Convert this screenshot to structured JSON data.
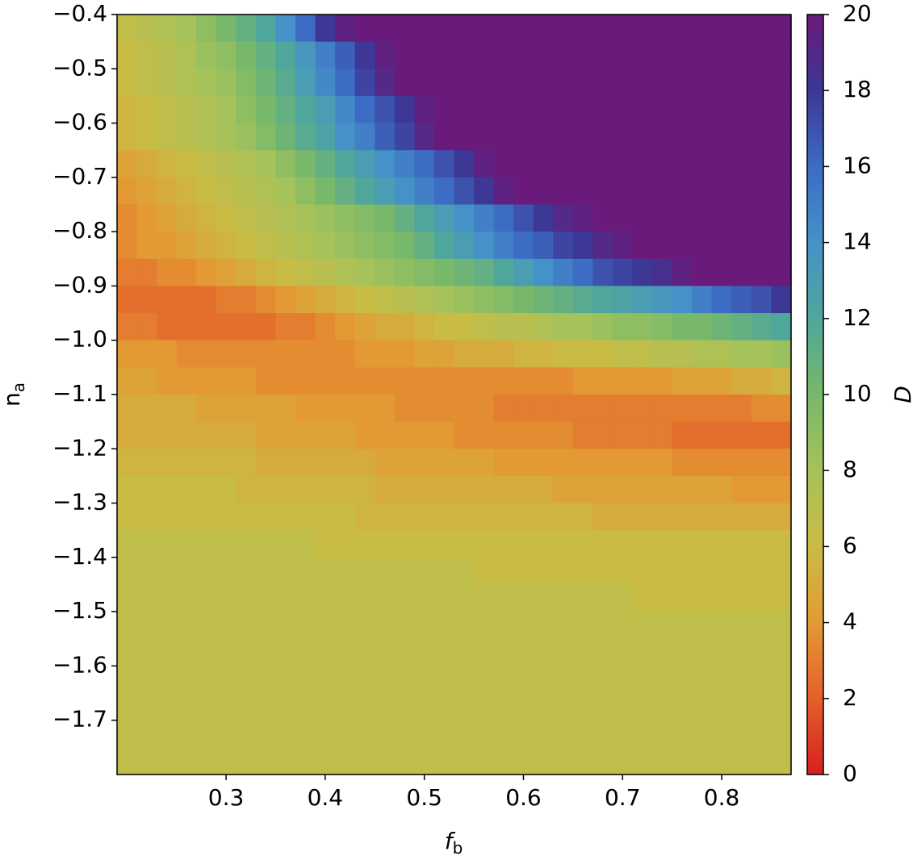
{
  "chart_data": {
    "type": "heatmap",
    "xlabel": "f",
    "xlabel_subscript": "b",
    "ylabel": "n",
    "ylabel_subscript": "a",
    "colorbar_label": "D",
    "xlim": [
      0.19,
      0.87
    ],
    "ylim": [
      -1.8,
      -0.4
    ],
    "xticks": [
      0.3,
      0.4,
      0.5,
      0.6,
      0.7,
      0.8
    ],
    "yticks": [
      {
        "value": -0.4,
        "label": "−0.4"
      },
      {
        "value": -0.5,
        "label": "−0.5"
      },
      {
        "value": -0.6,
        "label": "−0.6"
      },
      {
        "value": -0.7,
        "label": "−0.7"
      },
      {
        "value": -0.8,
        "label": "−0.8"
      },
      {
        "value": -0.9,
        "label": "−0.9"
      },
      {
        "value": -1.0,
        "label": "−1.0"
      },
      {
        "value": -1.1,
        "label": "−1.1"
      },
      {
        "value": -1.2,
        "label": "−1.2"
      },
      {
        "value": -1.3,
        "label": "−1.3"
      },
      {
        "value": -1.4,
        "label": "−1.4"
      },
      {
        "value": -1.5,
        "label": "−1.5"
      },
      {
        "value": -1.6,
        "label": "−1.6"
      },
      {
        "value": -1.7,
        "label": "−1.7"
      }
    ],
    "clim": [
      0,
      20
    ],
    "cticks": [
      0,
      2,
      4,
      6,
      8,
      10,
      12,
      14,
      16,
      18,
      20
    ],
    "colormap": [
      "#d62020",
      "#e4602a",
      "#e39a35",
      "#c9bc45",
      "#a6c25a",
      "#78b86a",
      "#4fa79b",
      "#4592c8",
      "#3c6cc4",
      "#3d3795",
      "#6a1a7a"
    ],
    "x": [
      0.2,
      0.22,
      0.24,
      0.26,
      0.28,
      0.3,
      0.32,
      0.34,
      0.36,
      0.38,
      0.4,
      0.42,
      0.44,
      0.46,
      0.48,
      0.5,
      0.52,
      0.54,
      0.56,
      0.58,
      0.6,
      0.62,
      0.64,
      0.66,
      0.68,
      0.7,
      0.72,
      0.74,
      0.76,
      0.78,
      0.8,
      0.82,
      0.84,
      0.86
    ],
    "y": [
      -0.425,
      -0.475,
      -0.525,
      -0.575,
      -0.625,
      -0.675,
      -0.725,
      -0.775,
      -0.825,
      -0.875,
      -0.925,
      -0.975,
      -1.025,
      -1.075,
      -1.125,
      -1.175,
      -1.225,
      -1.275,
      -1.325,
      -1.375,
      -1.425,
      -1.475,
      -1.525,
      -1.575,
      -1.625,
      -1.675,
      -1.725,
      -1.775
    ],
    "z": [
      [
        6.5,
        7,
        7.5,
        8,
        9,
        10,
        11,
        12,
        14,
        16,
        18,
        19.5,
        20,
        20,
        20,
        20,
        20,
        20,
        20,
        20,
        20,
        20,
        20,
        20,
        20,
        20,
        20,
        20,
        20,
        20,
        20,
        20,
        20,
        20
      ],
      [
        6,
        6.5,
        7,
        7.5,
        8.5,
        9,
        10,
        11,
        12,
        13.5,
        15,
        16.5,
        18,
        19.5,
        20,
        20,
        20,
        20,
        20,
        20,
        20,
        20,
        20,
        20,
        20,
        20,
        20,
        20,
        20,
        20,
        20,
        20,
        20,
        20
      ],
      [
        6,
        6.5,
        7,
        7.5,
        8,
        8.5,
        9.5,
        10.5,
        11.5,
        13,
        14.5,
        16,
        17.5,
        19,
        20,
        20,
        20,
        20,
        20,
        20,
        20,
        20,
        20,
        20,
        20,
        20,
        20,
        20,
        20,
        20,
        20,
        20,
        20,
        20
      ],
      [
        5.5,
        6,
        6.5,
        7,
        7.5,
        8,
        9,
        10,
        11,
        12,
        13,
        14.5,
        16,
        17,
        18,
        19.5,
        20,
        20,
        20,
        20,
        20,
        20,
        20,
        20,
        20,
        20,
        20,
        20,
        20,
        20,
        20,
        20,
        20,
        20
      ],
      [
        5.5,
        6,
        6.5,
        7,
        7.5,
        8,
        8.5,
        9.5,
        10.5,
        11.5,
        12.5,
        14,
        15,
        16.5,
        17.5,
        19,
        20,
        20,
        20,
        20,
        20,
        20,
        20,
        20,
        20,
        20,
        20,
        20,
        20,
        20,
        20,
        20,
        20,
        20
      ],
      [
        4.5,
        5,
        5.5,
        6,
        6.5,
        7,
        7.5,
        8,
        9,
        10,
        11,
        12,
        13,
        14,
        15,
        16,
        17,
        18,
        19.5,
        20,
        20,
        20,
        20,
        20,
        20,
        20,
        20,
        20,
        20,
        20,
        20,
        20,
        20,
        20
      ],
      [
        4,
        4.5,
        5,
        5.5,
        6,
        6.5,
        7,
        7.5,
        8,
        9,
        10,
        11,
        12,
        13,
        14,
        15,
        16,
        17,
        18,
        19.5,
        20,
        20,
        20,
        20,
        20,
        20,
        20,
        20,
        20,
        20,
        20,
        20,
        20,
        20
      ],
      [
        3.5,
        4,
        4.5,
        5,
        5.5,
        6,
        6.5,
        7,
        7.5,
        8,
        8.5,
        9,
        9.5,
        10,
        11,
        12,
        13,
        14,
        15,
        16,
        17,
        18,
        19,
        19.5,
        20,
        20,
        20,
        20,
        20,
        20,
        20,
        20,
        20,
        20
      ],
      [
        3.5,
        4,
        4,
        4.5,
        5,
        5.5,
        6,
        6.5,
        7,
        7.5,
        8,
        8.5,
        9,
        9.5,
        10,
        11,
        12,
        13,
        14,
        15,
        16,
        16.5,
        17.5,
        18,
        19,
        19.5,
        20,
        20,
        20,
        20,
        20,
        20,
        20,
        20
      ],
      [
        3,
        3,
        3.5,
        3.5,
        4,
        4.5,
        5,
        5.5,
        6,
        6.5,
        7,
        7.5,
        8,
        8.5,
        9,
        9.5,
        10,
        10.5,
        11,
        12,
        13,
        14,
        15,
        16,
        17,
        17.5,
        18,
        18.5,
        19.5,
        20,
        20,
        20,
        20,
        20
      ],
      [
        2.5,
        2.5,
        2.5,
        2.5,
        2.5,
        3,
        3,
        3.5,
        4,
        4.5,
        5,
        5.5,
        6,
        6.5,
        7,
        7.5,
        8,
        8.5,
        9,
        9.5,
        10,
        10.5,
        11,
        11.5,
        12,
        12.5,
        13,
        13.5,
        14,
        15,
        16,
        16.5,
        17,
        18
      ],
      [
        3,
        3,
        2.5,
        2.5,
        2.5,
        2.5,
        2.5,
        2.5,
        3,
        3,
        3.5,
        4,
        4.5,
        5,
        5,
        5.5,
        6,
        6,
        6.5,
        7,
        7,
        7.5,
        8,
        8,
        8.5,
        9,
        9,
        9.5,
        10,
        10,
        10.5,
        11,
        11.5,
        12
      ],
      [
        4,
        4,
        4,
        3.5,
        3.5,
        3.5,
        3.5,
        3.5,
        3.5,
        3.5,
        3.5,
        3.5,
        4,
        4,
        4,
        4.5,
        4.5,
        5,
        5,
        5,
        5.5,
        5.5,
        6,
        6,
        6,
        6.5,
        6.5,
        7,
        7,
        7.5,
        7.5,
        8,
        8,
        8.5
      ],
      [
        4.5,
        4.5,
        4,
        4,
        4,
        4,
        4,
        3.5,
        3.5,
        3.5,
        3.5,
        3.5,
        3.5,
        3.5,
        3.5,
        3.5,
        3.5,
        3.5,
        3.5,
        3.5,
        3.5,
        3.5,
        3.5,
        4,
        4,
        4,
        4,
        4,
        4.5,
        4.5,
        4.5,
        5,
        5,
        5.5
      ],
      [
        5,
        5,
        5,
        5,
        4.5,
        4.5,
        4.5,
        4.5,
        4.5,
        4,
        4,
        4,
        4,
        4,
        3.5,
        3.5,
        3.5,
        3.5,
        3.5,
        3,
        3,
        3,
        3,
        3,
        3,
        3,
        3,
        3,
        3,
        3,
        3,
        3,
        3.5,
        3.5
      ],
      [
        5,
        5,
        5,
        5,
        5,
        5,
        5,
        4.5,
        4.5,
        4.5,
        4.5,
        4.5,
        4,
        4,
        4,
        4,
        4,
        3.5,
        3.5,
        3.5,
        3.5,
        3.5,
        3.5,
        3,
        3,
        3,
        3,
        3,
        2.5,
        2.5,
        2.5,
        2.5,
        2.5,
        2.5
      ],
      [
        5.5,
        5.5,
        5.5,
        5.5,
        5.5,
        5.5,
        5.5,
        5,
        5,
        5,
        5,
        5,
        5,
        4.5,
        4.5,
        4.5,
        4.5,
        4.5,
        4.5,
        4,
        4,
        4,
        4,
        4,
        4,
        4,
        4,
        4,
        3.5,
        3.5,
        3.5,
        3.5,
        3.5,
        3.5
      ],
      [
        6,
        6,
        6,
        6,
        6,
        6,
        5.5,
        5.5,
        5.5,
        5.5,
        5.5,
        5.5,
        5.5,
        5,
        5,
        5,
        5,
        5,
        5,
        5,
        5,
        5,
        4.5,
        4.5,
        4.5,
        4.5,
        4.5,
        4.5,
        4.5,
        4.5,
        4.5,
        4,
        4,
        4
      ],
      [
        6,
        6,
        6,
        6,
        6,
        6,
        6,
        6,
        6,
        6,
        6,
        6,
        5.5,
        5.5,
        5.5,
        5.5,
        5.5,
        5.5,
        5.5,
        5.5,
        5.5,
        5.5,
        5.5,
        5.5,
        5,
        5,
        5,
        5,
        5,
        5,
        5,
        5,
        5,
        5
      ],
      [
        6.5,
        6.5,
        6.5,
        6.5,
        6.5,
        6.5,
        6.5,
        6.5,
        6.5,
        6.5,
        6,
        6,
        6,
        6,
        6,
        6,
        6,
        6,
        6,
        6,
        6,
        6,
        6,
        6,
        6,
        6,
        6,
        6,
        6,
        6,
        6,
        6,
        6,
        6
      ],
      [
        6.5,
        6.5,
        6.5,
        6.5,
        6.5,
        6.5,
        6.5,
        6.5,
        6.5,
        6.5,
        6.5,
        6.5,
        6.5,
        6.5,
        6.5,
        6.5,
        6.5,
        6.5,
        6,
        6,
        6,
        6,
        6,
        6,
        6,
        6,
        6,
        6,
        6,
        6,
        6,
        6,
        6,
        6
      ],
      [
        6.5,
        6.5,
        6.5,
        6.5,
        6.5,
        6.5,
        6.5,
        6.5,
        6.5,
        6.5,
        6.5,
        6.5,
        6.5,
        6.5,
        6.5,
        6.5,
        6.5,
        6.5,
        6.5,
        6.5,
        6.5,
        6.5,
        6.5,
        6.5,
        6.5,
        6.5,
        6,
        6,
        6,
        6,
        6,
        6,
        6,
        6
      ],
      [
        6.5,
        6.5,
        6.5,
        6.5,
        6.5,
        6.5,
        6.5,
        6.5,
        6.5,
        6.5,
        6.5,
        6.5,
        6.5,
        6.5,
        6.5,
        6.5,
        6.5,
        6.5,
        6.5,
        6.5,
        6.5,
        6.5,
        6.5,
        6.5,
        6.5,
        6.5,
        6.5,
        6.5,
        6.5,
        6.5,
        6.5,
        6.5,
        6.5,
        6.5
      ],
      [
        6.5,
        6.5,
        6.5,
        6.5,
        6.5,
        6.5,
        6.5,
        6.5,
        6.5,
        6.5,
        6.5,
        6.5,
        6.5,
        6.5,
        6.5,
        6.5,
        6.5,
        6.5,
        6.5,
        6.5,
        6.5,
        6.5,
        6.5,
        6.5,
        6.5,
        6.5,
        6.5,
        6.5,
        6.5,
        6.5,
        6.5,
        6.5,
        6.5,
        6.5
      ],
      [
        6.5,
        6.5,
        6.5,
        6.5,
        6.5,
        6.5,
        6.5,
        6.5,
        6.5,
        6.5,
        6.5,
        6.5,
        6.5,
        6.5,
        6.5,
        6.5,
        6.5,
        6.5,
        6.5,
        6.5,
        6.5,
        6.5,
        6.5,
        6.5,
        6.5,
        6.5,
        6.5,
        6.5,
        6.5,
        6.5,
        6.5,
        6.5,
        6.5,
        6.5
      ],
      [
        6.5,
        6.5,
        6.5,
        6.5,
        6.5,
        6.5,
        6.5,
        6.5,
        6.5,
        6.5,
        6.5,
        6.5,
        6.5,
        6.5,
        6.5,
        6.5,
        6.5,
        6.5,
        6.5,
        6.5,
        6.5,
        6.5,
        6.5,
        6.5,
        6.5,
        6.5,
        6.5,
        6.5,
        6.5,
        6.5,
        6.5,
        6.5,
        6.5,
        6.5
      ],
      [
        6.5,
        6.5,
        6.5,
        6.5,
        6.5,
        6.5,
        6.5,
        6.5,
        6.5,
        6.5,
        6.5,
        6.5,
        6.5,
        6.5,
        6.5,
        6.5,
        6.5,
        6.5,
        6.5,
        6.5,
        6.5,
        6.5,
        6.5,
        6.5,
        6.5,
        6.5,
        6.5,
        6.5,
        6.5,
        6.5,
        6.5,
        6.5,
        6.5,
        6.5
      ],
      [
        6.5,
        6.5,
        6.5,
        6.5,
        6.5,
        6.5,
        6.5,
        6.5,
        6.5,
        6.5,
        6.5,
        6.5,
        6.5,
        6.5,
        6.5,
        6.5,
        6.5,
        6.5,
        6.5,
        6.5,
        6.5,
        6.5,
        6.5,
        6.5,
        6.5,
        6.5,
        6.5,
        6.5,
        6.5,
        6.5,
        6.5,
        6.5,
        6.5,
        6.5
      ]
    ]
  }
}
